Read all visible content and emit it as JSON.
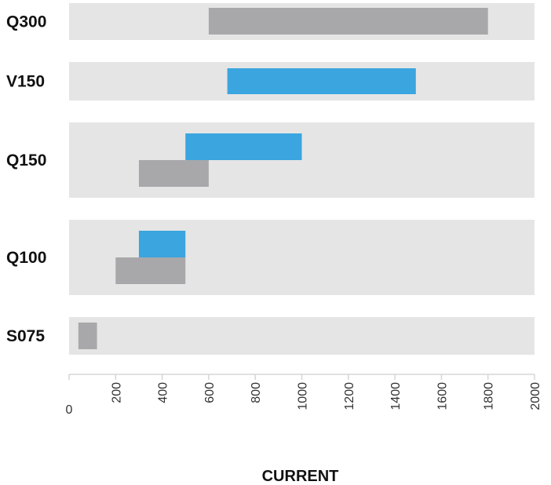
{
  "chart_data": {
    "type": "bar",
    "orientation": "horizontal",
    "subtype": "floating-range",
    "title": "",
    "xlabel": "CURRENT",
    "ylabel": "",
    "xlim": [
      0,
      2000
    ],
    "x_ticks": [
      "0",
      "200",
      "400",
      "600",
      "800",
      "1000",
      "1200",
      "1400",
      "1600",
      "1800",
      "2000"
    ],
    "categories": [
      "Q300",
      "V150",
      "Q150",
      "Q100",
      "S075"
    ],
    "series": [
      {
        "color": "#3aa5de",
        "ranges": [
          null,
          [
            680,
            1490
          ],
          [
            500,
            1000
          ],
          [
            300,
            500
          ],
          null
        ]
      },
      {
        "color": "#a8a8ab",
        "ranges": [
          [
            600,
            1800
          ],
          null,
          [
            300,
            600
          ],
          [
            200,
            500
          ],
          [
            40,
            120
          ]
        ]
      }
    ],
    "band_color": "#e5e5e5",
    "grid": false,
    "legend": "none"
  }
}
